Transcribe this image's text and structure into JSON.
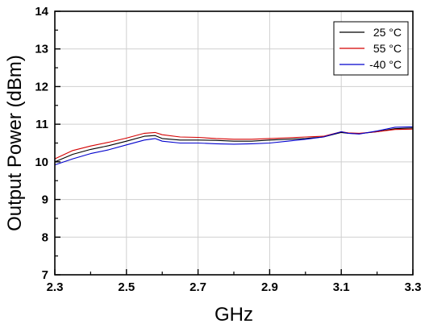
{
  "chart_data": {
    "type": "line",
    "title": "",
    "xlabel": "GHz",
    "ylabel": "Output Power (dBm)",
    "xlim": [
      2.3,
      3.3
    ],
    "ylim": [
      7,
      14
    ],
    "x_ticks": [
      "2.3",
      "2.5",
      "2.7",
      "2.9",
      "3.1",
      "3.3"
    ],
    "y_ticks": [
      "7",
      "8",
      "9",
      "10",
      "11",
      "12",
      "13",
      "14"
    ],
    "grid": true,
    "legend_position": "top-right",
    "x": [
      2.3,
      2.35,
      2.4,
      2.45,
      2.5,
      2.55,
      2.58,
      2.6,
      2.65,
      2.7,
      2.75,
      2.8,
      2.85,
      2.9,
      2.95,
      3.0,
      3.05,
      3.1,
      3.12,
      3.15,
      3.2,
      3.25,
      3.3
    ],
    "series": [
      {
        "name": "25 °C",
        "color": "#000000",
        "values": [
          10.0,
          10.2,
          10.33,
          10.43,
          10.55,
          10.68,
          10.7,
          10.62,
          10.58,
          10.58,
          10.57,
          10.55,
          10.55,
          10.58,
          10.6,
          10.62,
          10.66,
          10.78,
          10.76,
          10.75,
          10.8,
          10.88,
          10.9
        ]
      },
      {
        "name": "55 °C",
        "color": "#d40000",
        "values": [
          10.08,
          10.3,
          10.42,
          10.52,
          10.63,
          10.76,
          10.78,
          10.72,
          10.66,
          10.65,
          10.62,
          10.6,
          10.6,
          10.62,
          10.64,
          10.66,
          10.68,
          10.8,
          10.77,
          10.76,
          10.8,
          10.86,
          10.87
        ]
      },
      {
        "name": "-40 °C",
        "color": "#0000cc",
        "values": [
          9.92,
          10.08,
          10.22,
          10.32,
          10.45,
          10.58,
          10.62,
          10.55,
          10.5,
          10.5,
          10.48,
          10.47,
          10.48,
          10.5,
          10.55,
          10.6,
          10.66,
          10.8,
          10.76,
          10.74,
          10.82,
          10.92,
          10.93
        ]
      }
    ]
  }
}
